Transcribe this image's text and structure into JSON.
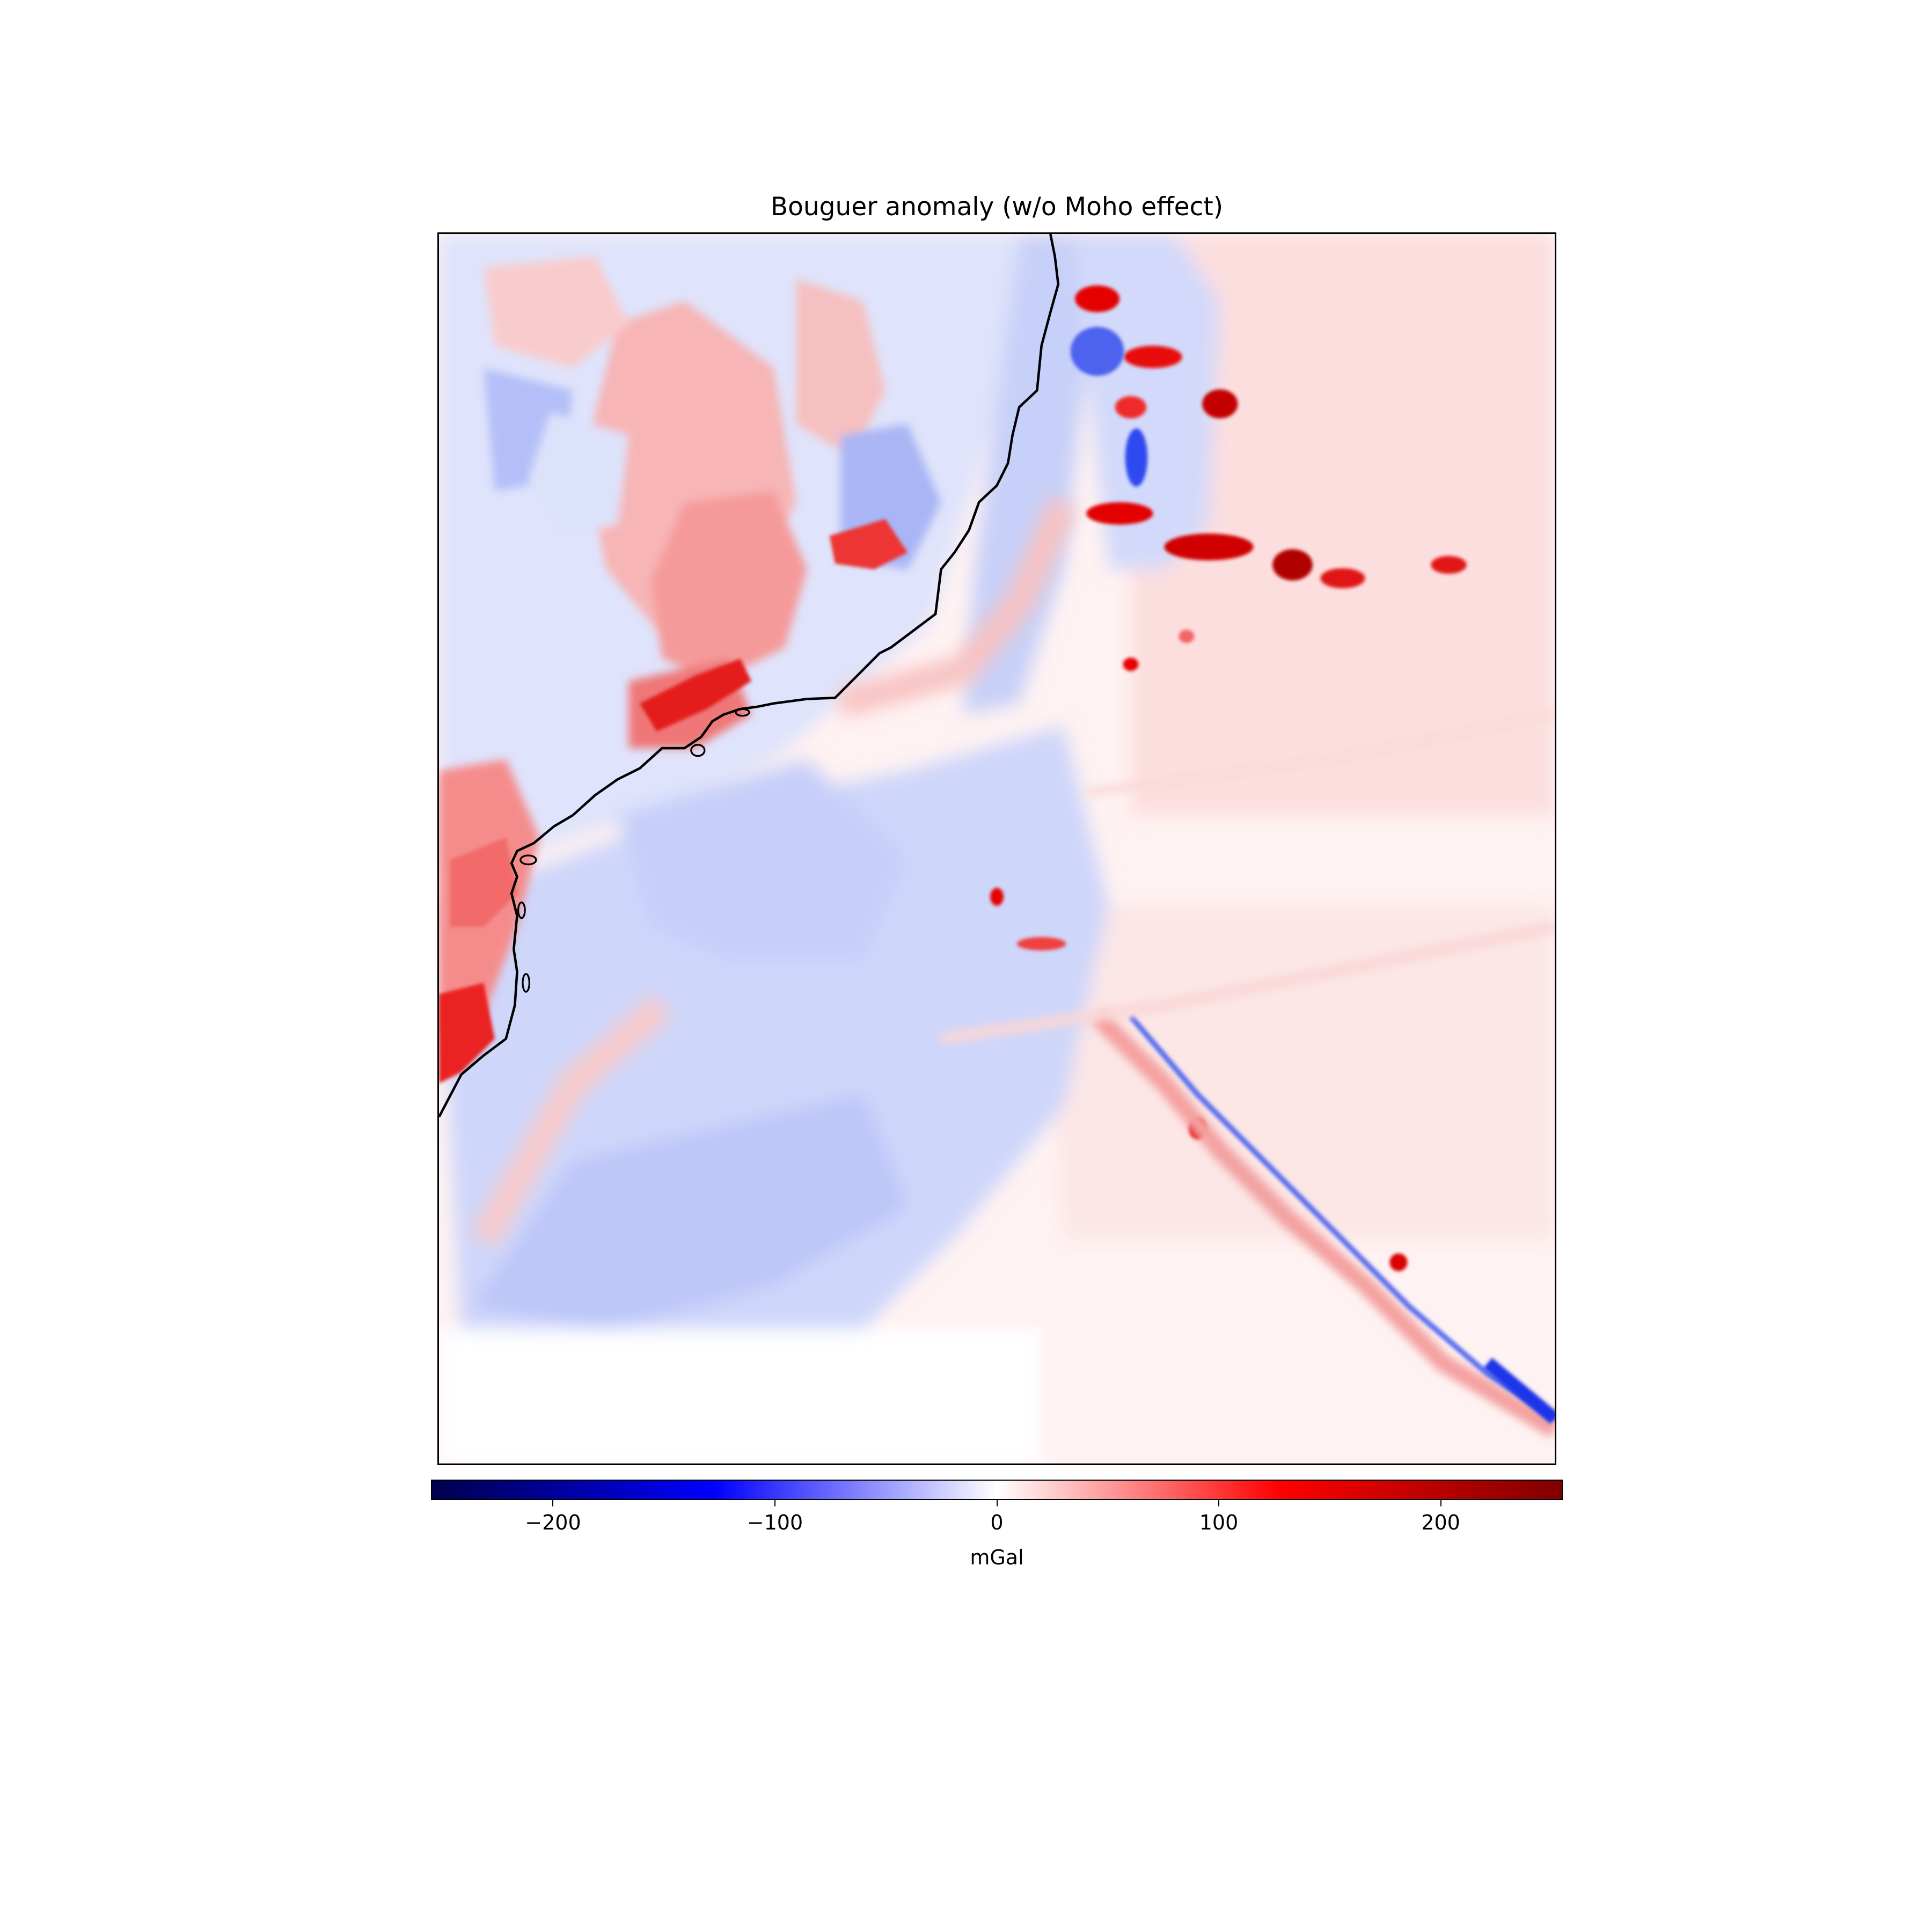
{
  "map": {
    "title": "Bouguer anomaly (w/o Moho effect)",
    "colormap": "seismic",
    "features": [
      "coastline"
    ]
  },
  "colorbar": {
    "label": "mGal",
    "range": [
      -255,
      255
    ],
    "ticks": [
      {
        "value": -200,
        "label": "−200"
      },
      {
        "value": -100,
        "label": "−100"
      },
      {
        "value": 0,
        "label": "0"
      },
      {
        "value": 100,
        "label": "100"
      },
      {
        "value": 200,
        "label": "200"
      }
    ],
    "colors": [
      "#00004c",
      "#0000ff",
      "#ffffff",
      "#ff0000",
      "#800000"
    ]
  }
}
